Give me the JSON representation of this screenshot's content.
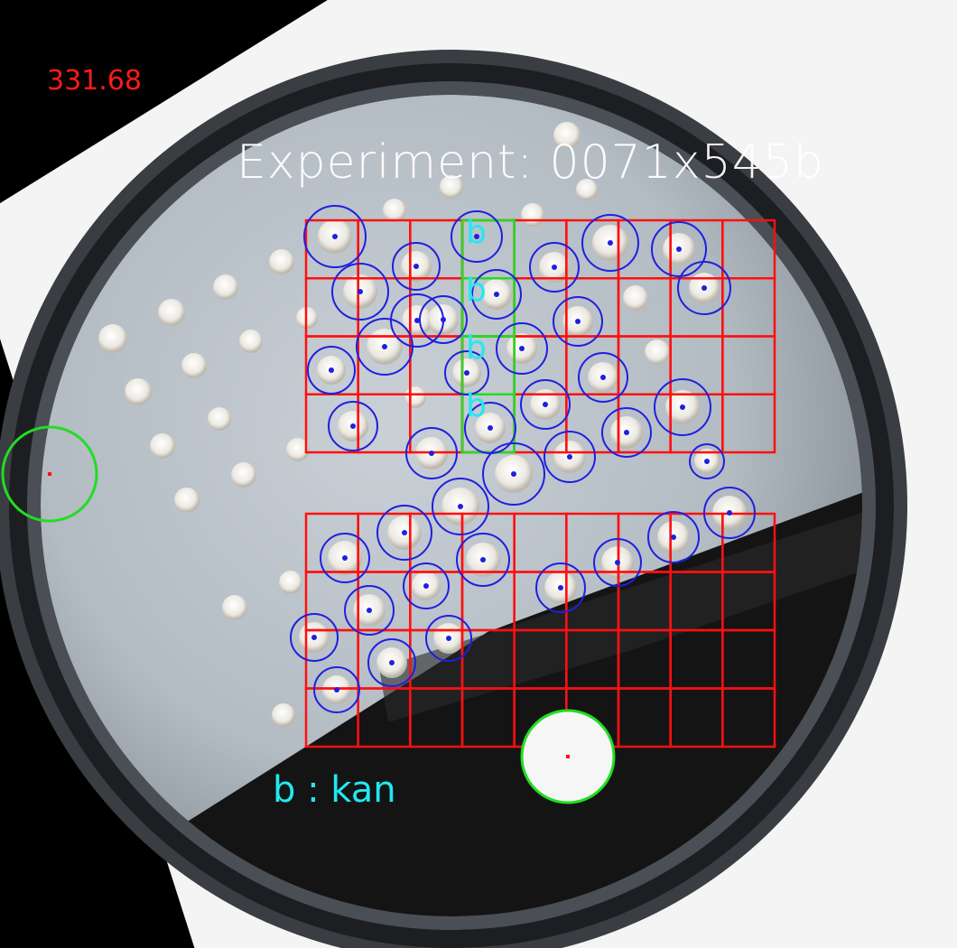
{
  "overlay": {
    "score": "331.68",
    "title": "Experiment: 0071x545b",
    "legend": "b : kan",
    "flag_letter": "b"
  },
  "colors": {
    "background": "#000000",
    "grid": "#ff1010",
    "flagged_cell": "#22dd22",
    "colony_circle": "#1f1fe0",
    "marker_circle": "#22dd22",
    "score_text": "#ff1a1a",
    "flag_text": "#22e8f0"
  },
  "grids": [
    {
      "name": "upper-grid",
      "rows": 4,
      "cols": 9
    },
    {
      "name": "lower-grid",
      "rows": 4,
      "cols": 9
    }
  ],
  "flagged_cells": [
    {
      "grid": "upper-grid",
      "row": 1,
      "col": 4
    },
    {
      "grid": "upper-grid",
      "row": 2,
      "col": 4
    },
    {
      "grid": "upper-grid",
      "row": 3,
      "col": 4
    },
    {
      "grid": "upper-grid",
      "row": 4,
      "col": 4
    }
  ]
}
